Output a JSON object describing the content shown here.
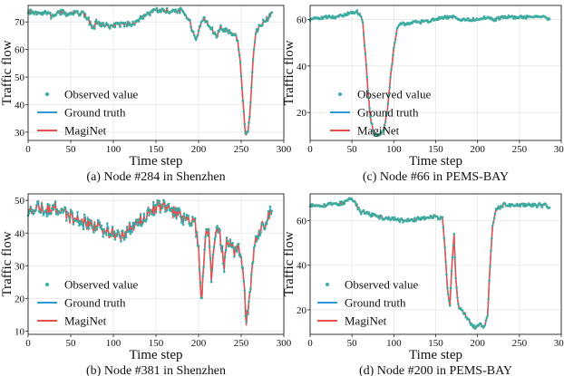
{
  "colors": {
    "observed": "#3bada0",
    "ground_truth": "#2b9bd8",
    "maginet": "#e8504b"
  },
  "chart_data": [
    {
      "type": "line",
      "caption": "(a) Node #284 in Shenzhen",
      "xlabel": "Time step",
      "ylabel": "Traffic flow",
      "xlim": [
        0,
        300
      ],
      "ylim": [
        27,
        76
      ],
      "xticks": [
        0,
        50,
        100,
        150,
        200,
        250,
        300
      ],
      "yticks": [
        30,
        40,
        50,
        60,
        70
      ],
      "grid": true,
      "legend": {
        "position": "lower-left",
        "entries": [
          "Observed value",
          "Ground truth",
          "MagiNet"
        ]
      },
      "series": [
        {
          "name": "Observed value",
          "kind": "markers"
        },
        {
          "name": "Ground truth",
          "kind": "line"
        },
        {
          "name": "MagiNet",
          "kind": "line"
        }
      ],
      "keypoints": [
        [
          0,
          73.5
        ],
        [
          10,
          73
        ],
        [
          20,
          73.5
        ],
        [
          28,
          72
        ],
        [
          35,
          73.5
        ],
        [
          45,
          73
        ],
        [
          55,
          73.5
        ],
        [
          65,
          73
        ],
        [
          70,
          71.5
        ],
        [
          76,
          67
        ],
        [
          80,
          70
        ],
        [
          85,
          69
        ],
        [
          95,
          68.5
        ],
        [
          105,
          69
        ],
        [
          115,
          69.5
        ],
        [
          125,
          69
        ],
        [
          130,
          71
        ],
        [
          140,
          73
        ],
        [
          150,
          74
        ],
        [
          160,
          74
        ],
        [
          170,
          74
        ],
        [
          180,
          74
        ],
        [
          186,
          72
        ],
        [
          190,
          70
        ],
        [
          193,
          66
        ],
        [
          197,
          64
        ],
        [
          200,
          67
        ],
        [
          205,
          71
        ],
        [
          210,
          70
        ],
        [
          215,
          68
        ],
        [
          218,
          66
        ],
        [
          222,
          65
        ],
        [
          226,
          68
        ],
        [
          232,
          67
        ],
        [
          238,
          66
        ],
        [
          242,
          66
        ],
        [
          246,
          63
        ],
        [
          249,
          55
        ],
        [
          252,
          42
        ],
        [
          255,
          29
        ],
        [
          258,
          30
        ],
        [
          261,
          40
        ],
        [
          264,
          56
        ],
        [
          267,
          66
        ],
        [
          270,
          68
        ],
        [
          275,
          70
        ],
        [
          280,
          71
        ],
        [
          286,
          73
        ]
      ],
      "noise": {
        "amp": 0.9,
        "seed": 7
      }
    },
    {
      "type": "line",
      "caption": "(b) Node #381 in Shenzhen",
      "xlabel": "Time step",
      "ylabel": "Traffic flow",
      "xlim": [
        0,
        300
      ],
      "ylim": [
        9,
        52
      ],
      "xticks": [
        0,
        50,
        100,
        150,
        200,
        250,
        300
      ],
      "yticks": [
        10,
        20,
        30,
        40,
        50
      ],
      "grid": true,
      "legend": {
        "position": "lower-left",
        "entries": [
          "Observed value",
          "Ground truth",
          "MagiNet"
        ]
      },
      "series": [
        {
          "name": "Observed value",
          "kind": "markers"
        },
        {
          "name": "Ground truth",
          "kind": "line"
        },
        {
          "name": "MagiNet",
          "kind": "line"
        }
      ],
      "keypoints": [
        [
          0,
          47
        ],
        [
          10,
          48
        ],
        [
          20,
          47
        ],
        [
          30,
          48
        ],
        [
          40,
          47
        ],
        [
          50,
          45
        ],
        [
          60,
          44
        ],
        [
          70,
          43
        ],
        [
          80,
          42
        ],
        [
          90,
          41
        ],
        [
          100,
          40
        ],
        [
          110,
          39
        ],
        [
          115,
          40
        ],
        [
          120,
          42
        ],
        [
          125,
          41
        ],
        [
          130,
          43
        ],
        [
          140,
          46
        ],
        [
          150,
          48
        ],
        [
          160,
          49
        ],
        [
          170,
          47
        ],
        [
          180,
          45
        ],
        [
          190,
          44
        ],
        [
          196,
          43
        ],
        [
          200,
          35
        ],
        [
          203,
          18
        ],
        [
          206,
          30
        ],
        [
          209,
          42
        ],
        [
          212,
          40
        ],
        [
          215,
          26
        ],
        [
          218,
          36
        ],
        [
          221,
          42
        ],
        [
          225,
          40
        ],
        [
          230,
          30
        ],
        [
          233,
          38
        ],
        [
          237,
          37
        ],
        [
          242,
          33
        ],
        [
          246,
          36
        ],
        [
          250,
          33
        ],
        [
          253,
          26
        ],
        [
          256,
          12
        ],
        [
          259,
          18
        ],
        [
          262,
          26
        ],
        [
          265,
          36
        ],
        [
          270,
          40
        ],
        [
          275,
          42
        ],
        [
          280,
          44
        ],
        [
          286,
          48
        ]
      ],
      "noise": {
        "amp": 2.0,
        "seed": 19
      }
    },
    {
      "type": "line",
      "caption": "(c) Node #66 in PEMS-BAY",
      "xlabel": "Time step",
      "ylabel": "Traffic flow",
      "xlim": [
        0,
        300
      ],
      "ylim": [
        8,
        66
      ],
      "xticks": [
        0,
        50,
        100,
        150,
        200,
        250,
        300
      ],
      "yticks": [
        20,
        40,
        60
      ],
      "grid": true,
      "legend": {
        "position": "center",
        "entries": [
          "Observed value",
          "Ground truth",
          "MagiNet"
        ]
      },
      "series": [
        {
          "name": "Observed value",
          "kind": "markers"
        },
        {
          "name": "Ground truth",
          "kind": "line"
        },
        {
          "name": "MagiNet",
          "kind": "line"
        }
      ],
      "keypoints": [
        [
          0,
          60
        ],
        [
          10,
          60.5
        ],
        [
          20,
          61
        ],
        [
          30,
          61
        ],
        [
          40,
          62
        ],
        [
          50,
          63
        ],
        [
          55,
          63.5
        ],
        [
          60,
          62
        ],
        [
          63,
          58
        ],
        [
          66,
          45
        ],
        [
          69,
          30
        ],
        [
          72,
          18
        ],
        [
          76,
          11
        ],
        [
          80,
          10
        ],
        [
          84,
          11
        ],
        [
          88,
          13
        ],
        [
          92,
          20
        ],
        [
          96,
          35
        ],
        [
          100,
          48
        ],
        [
          104,
          56
        ],
        [
          108,
          58
        ],
        [
          115,
          58
        ],
        [
          125,
          59
        ],
        [
          140,
          59
        ],
        [
          150,
          60
        ],
        [
          160,
          61
        ],
        [
          170,
          61
        ],
        [
          180,
          60
        ],
        [
          190,
          60
        ],
        [
          200,
          60
        ],
        [
          210,
          61
        ],
        [
          220,
          60
        ],
        [
          230,
          61
        ],
        [
          240,
          61
        ],
        [
          250,
          61
        ],
        [
          260,
          61
        ],
        [
          270,
          61
        ],
        [
          280,
          61
        ],
        [
          286,
          60
        ]
      ],
      "noise": {
        "amp": 0.6,
        "seed": 31
      }
    },
    {
      "type": "line",
      "caption": "(d) Node #200 in PEMS-BAY",
      "xlabel": "Time step",
      "ylabel": "Traffic flow",
      "xlim": [
        0,
        300
      ],
      "ylim": [
        9,
        72
      ],
      "xticks": [
        0,
        50,
        100,
        150,
        200,
        250,
        300
      ],
      "yticks": [
        20,
        40,
        60
      ],
      "grid": true,
      "legend": {
        "position": "lower-left",
        "entries": [
          "Observed value",
          "Ground truth",
          "MagiNet"
        ]
      },
      "series": [
        {
          "name": "Observed value",
          "kind": "markers"
        },
        {
          "name": "Ground truth",
          "kind": "line"
        },
        {
          "name": "MagiNet",
          "kind": "line"
        }
      ],
      "keypoints": [
        [
          0,
          67
        ],
        [
          20,
          67
        ],
        [
          40,
          68
        ],
        [
          50,
          70
        ],
        [
          55,
          67
        ],
        [
          60,
          64
        ],
        [
          70,
          63
        ],
        [
          80,
          62
        ],
        [
          90,
          61
        ],
        [
          100,
          61
        ],
        [
          110,
          60
        ],
        [
          120,
          60
        ],
        [
          130,
          61
        ],
        [
          140,
          61
        ],
        [
          150,
          62
        ],
        [
          158,
          61
        ],
        [
          161,
          48
        ],
        [
          164,
          30
        ],
        [
          167,
          22
        ],
        [
          170,
          44
        ],
        [
          172,
          54
        ],
        [
          174,
          34
        ],
        [
          177,
          22
        ],
        [
          182,
          20
        ],
        [
          188,
          16
        ],
        [
          193,
          13
        ],
        [
          198,
          12
        ],
        [
          203,
          14
        ],
        [
          208,
          12
        ],
        [
          212,
          18
        ],
        [
          215,
          40
        ],
        [
          218,
          58
        ],
        [
          222,
          65
        ],
        [
          230,
          67
        ],
        [
          240,
          67
        ],
        [
          260,
          67
        ],
        [
          280,
          67
        ],
        [
          286,
          66
        ]
      ],
      "noise": {
        "amp": 0.8,
        "seed": 53
      }
    }
  ]
}
